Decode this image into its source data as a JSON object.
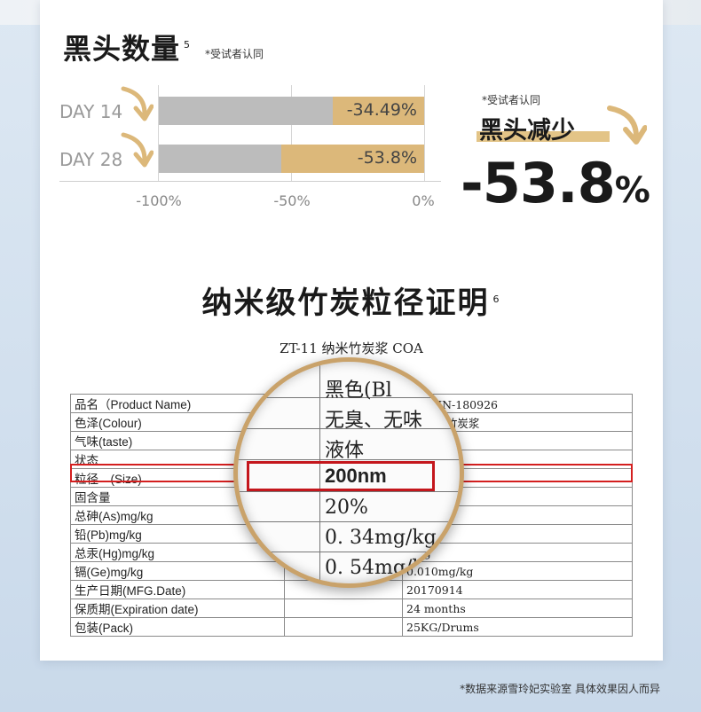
{
  "section1": {
    "title": "黑头数量",
    "title_sup": "5",
    "note": "*受试者认同",
    "rows": [
      {
        "label": "DAY 14",
        "value_text": "-34.49%",
        "value": -34.49
      },
      {
        "label": "DAY 28",
        "value_text": "-53.8%",
        "value": -53.8
      }
    ],
    "ticks": [
      "-100%",
      "-50%",
      "0%"
    ],
    "right_note": "*受试者认同",
    "right_title": "黑头减少",
    "big_number": "-53.8",
    "big_unit": "%",
    "colors": {
      "fill": "#dcb87a",
      "bar_bg": "#bcbcbc",
      "arrow": "#dcb87a"
    }
  },
  "section2": {
    "title": "纳米级竹炭粒径证明",
    "title_sup": "6",
    "coa_title": "ZT-11 纳米竹炭浆 COA",
    "table": [
      [
        "品名（Product Name)",
        "",
        "批号:HN-180926"
      ],
      [
        "色泽(Colour)",
        "",
        "11 纳米竹炭浆"
      ],
      [
        "气味(taste)",
        "",
        "(Black)"
      ],
      [
        "状态",
        "",
        "无味"
      ],
      [
        "粒径　(Size)",
        "",
        ""
      ],
      [
        "固含量",
        "",
        ""
      ],
      [
        "总砷(As)mg/kg",
        "",
        "g/kg"
      ],
      [
        "铅(Pb)mg/kg",
        "",
        "g/kg"
      ],
      [
        "总汞(Hg)mg/kg",
        "",
        "g/kg"
      ],
      [
        "镉(Ge)mg/kg",
        "",
        "0.010mg/kg"
      ],
      [
        "生产日期(MFG.Date)",
        "",
        "20170914"
      ],
      [
        "保质期(Expiration date)",
        "",
        "24 months"
      ],
      [
        "包装(Pack)",
        "",
        "25KG/Drums"
      ]
    ],
    "magnifier": {
      "lines": [
        "黑色(Bl",
        "无臭、无味",
        "液体",
        "200nm",
        "20%",
        "0. 34mg/kg",
        "0. 54mg/kg"
      ],
      "highlight": "200nm"
    }
  },
  "footer": "*数据来源雪玲妃实验室 具体效果因人而异"
}
